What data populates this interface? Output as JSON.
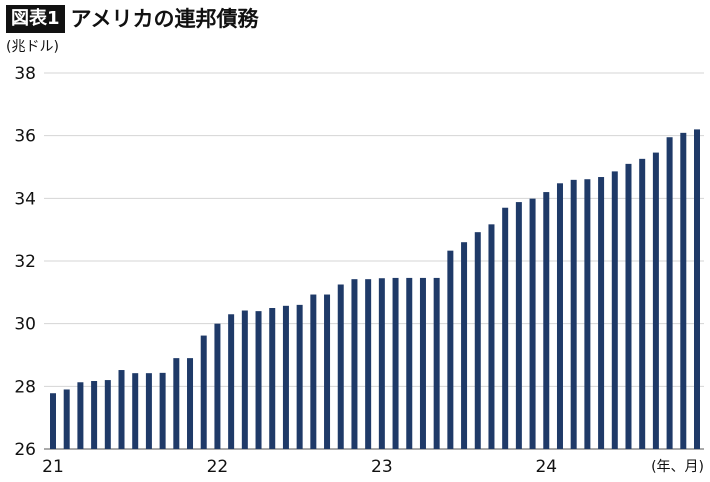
{
  "header": {
    "badge": "図表1",
    "title": "アメリカの連邦債務"
  },
  "chart_data": {
    "type": "bar",
    "ylabel": "(兆ドル)",
    "xlabel": "(年、月)",
    "ylim": [
      26,
      38
    ],
    "yticks": [
      26,
      28,
      30,
      32,
      34,
      36,
      38
    ],
    "xtick_labels": [
      {
        "label": "21",
        "index": 0
      },
      {
        "label": "22",
        "index": 12
      },
      {
        "label": "23",
        "index": 24
      },
      {
        "label": "24",
        "index": 36
      }
    ],
    "grid": true,
    "bar_color": "#1f3a68",
    "values": [
      27.78,
      27.9,
      28.13,
      28.17,
      28.2,
      28.52,
      28.42,
      28.42,
      28.43,
      28.9,
      28.9,
      29.62,
      30.0,
      30.3,
      30.42,
      30.4,
      30.5,
      30.57,
      30.6,
      30.93,
      30.93,
      31.25,
      31.42,
      31.42,
      31.45,
      31.46,
      31.46,
      31.46,
      31.46,
      32.33,
      32.6,
      32.92,
      33.17,
      33.7,
      33.88,
      33.99,
      34.2,
      34.48,
      34.59,
      34.61,
      34.68,
      34.86,
      35.1,
      35.26,
      35.46,
      35.95,
      36.09,
      36.2
    ]
  }
}
